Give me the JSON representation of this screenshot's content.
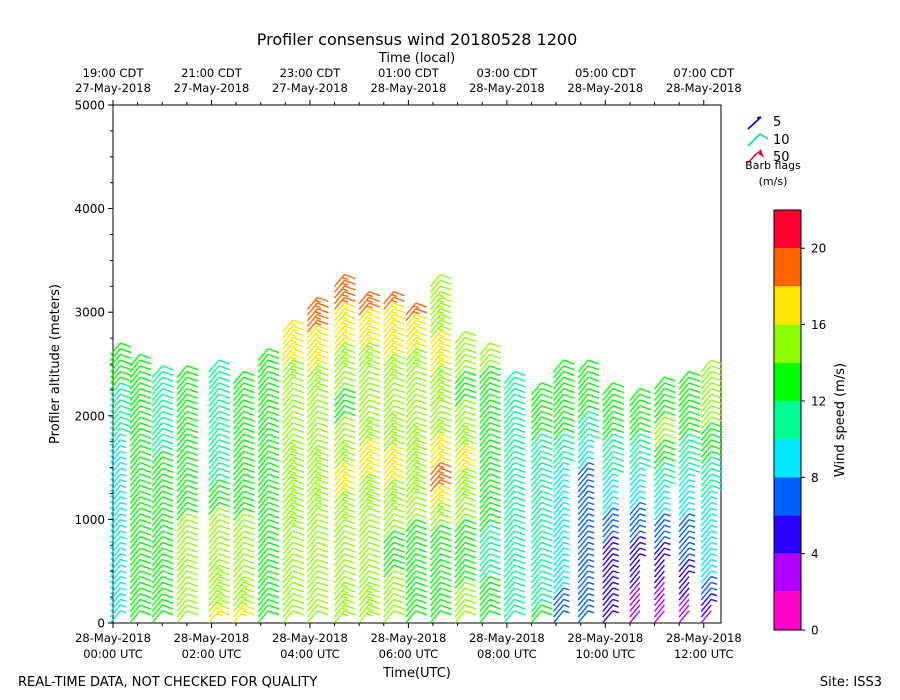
{
  "chart_data": {
    "type": "wind-barb-profile",
    "title": "Profiler consensus wind 20180528 1200",
    "xlabel": "Time(UTC)",
    "xlabel_top": "Time (local)",
    "ylabel": "Profiler altitude (meters)",
    "ylim": [
      0,
      5000
    ],
    "y_ticks": [
      0,
      1000,
      2000,
      3000,
      4000,
      5000
    ],
    "x_ticks_utc": [
      {
        "hour": 0,
        "date": "28-May-2018",
        "time": "00:00 UTC"
      },
      {
        "hour": 2,
        "date": "28-May-2018",
        "time": "02:00 UTC"
      },
      {
        "hour": 4,
        "date": "28-May-2018",
        "time": "04:00 UTC"
      },
      {
        "hour": 6,
        "date": "28-May-2018",
        "time": "06:00 UTC"
      },
      {
        "hour": 8,
        "date": "28-May-2018",
        "time": "08:00 UTC"
      },
      {
        "hour": 10,
        "date": "28-May-2018",
        "time": "10:00 UTC"
      },
      {
        "hour": 12,
        "date": "28-May-2018",
        "time": "12:00 UTC"
      }
    ],
    "x_ticks_local": [
      {
        "hour": 0,
        "time": "19:00 CDT",
        "date": "27-May-2018"
      },
      {
        "hour": 2,
        "time": "21:00 CDT",
        "date": "27-May-2018"
      },
      {
        "hour": 4,
        "time": "23:00 CDT",
        "date": "27-May-2018"
      },
      {
        "hour": 6,
        "time": "01:00 CDT",
        "date": "28-May-2018"
      },
      {
        "hour": 8,
        "time": "03:00 CDT",
        "date": "28-May-2018"
      },
      {
        "hour": 10,
        "time": "05:00 CDT",
        "date": "28-May-2018"
      },
      {
        "hour": 12,
        "time": "07:00 CDT",
        "date": "28-May-2018"
      }
    ],
    "xlim_hours": [
      0,
      12.35
    ],
    "barb_legend": {
      "entries": [
        {
          "value": "5",
          "color": "#0000d0"
        },
        {
          "value": "10",
          "color": "#00e090"
        },
        {
          "value": "50",
          "color": "#ff0030"
        }
      ],
      "title": "Barb flags",
      "units": "(m/s)"
    },
    "colorbar": {
      "label": "Wind speed (m/s)",
      "range": [
        0,
        22
      ],
      "ticks": [
        0,
        4,
        8,
        12,
        16,
        20
      ],
      "bins": [
        {
          "from": 0,
          "to": 2,
          "color": "#ff00c8"
        },
        {
          "from": 2,
          "to": 4,
          "color": "#b400ff"
        },
        {
          "from": 4,
          "to": 6,
          "color": "#2a00ff"
        },
        {
          "from": 6,
          "to": 8,
          "color": "#0060ff"
        },
        {
          "from": 8,
          "to": 10,
          "color": "#00e8ff"
        },
        {
          "from": 10,
          "to": 12,
          "color": "#00ff90"
        },
        {
          "from": 12,
          "to": 14,
          "color": "#00ff00"
        },
        {
          "from": 14,
          "to": 16,
          "color": "#8cff00"
        },
        {
          "from": 16,
          "to": 18,
          "color": "#ffe600"
        },
        {
          "from": 18,
          "to": 20,
          "color": "#ff6400"
        },
        {
          "from": 20,
          "to": 22,
          "color": "#ff0030"
        }
      ]
    },
    "columns": [
      {
        "hour": 0.05,
        "top": 2650,
        "profile": [
          [
            0,
            9
          ],
          [
            800,
            9
          ],
          [
            1500,
            8.5
          ],
          [
            2000,
            11
          ],
          [
            2600,
            13
          ]
        ]
      },
      {
        "hour": 0.45,
        "top": 2550,
        "profile": [
          [
            0,
            12
          ],
          [
            800,
            12.5
          ],
          [
            1500,
            12
          ],
          [
            2000,
            13
          ],
          [
            2500,
            13
          ]
        ]
      },
      {
        "hour": 0.9,
        "top": 2450,
        "profile": [
          [
            0,
            12
          ],
          [
            800,
            12.5
          ],
          [
            1400,
            13
          ],
          [
            2000,
            10.5
          ],
          [
            2450,
            12
          ]
        ]
      },
      {
        "hour": 1.4,
        "top": 2450,
        "profile": [
          [
            0,
            15
          ],
          [
            800,
            14.5
          ],
          [
            1400,
            13
          ],
          [
            2000,
            12
          ],
          [
            2450,
            13
          ]
        ]
      },
      {
        "hour": 2.05,
        "top": 2500,
        "profile": [
          [
            0,
            16.5
          ],
          [
            500,
            15
          ],
          [
            1000,
            14.5
          ],
          [
            1500,
            11
          ],
          [
            2100,
            10
          ],
          [
            2500,
            12
          ]
        ]
      },
      {
        "hour": 2.55,
        "top": 2400,
        "profile": [
          [
            0,
            16.5
          ],
          [
            400,
            15
          ],
          [
            1000,
            14
          ],
          [
            1600,
            13
          ],
          [
            2400,
            13
          ]
        ]
      },
      {
        "hour": 3.05,
        "top": 2600,
        "profile": [
          [
            0,
            13.5
          ],
          [
            800,
            13
          ],
          [
            1600,
            13
          ],
          [
            2600,
            13
          ]
        ]
      },
      {
        "hour": 3.55,
        "top": 2900,
        "profile": [
          [
            0,
            14
          ],
          [
            900,
            15
          ],
          [
            1500,
            15.5
          ],
          [
            2200,
            14
          ],
          [
            2700,
            17
          ],
          [
            2900,
            17
          ]
        ]
      },
      {
        "hour": 4.05,
        "top": 3100,
        "profile": [
          [
            0,
            15
          ],
          [
            800,
            14
          ],
          [
            1400,
            16
          ],
          [
            2000,
            14
          ],
          [
            2700,
            17
          ],
          [
            3100,
            20
          ]
        ]
      },
      {
        "hour": 4.6,
        "top": 3350,
        "profile": [
          [
            0,
            16
          ],
          [
            700,
            14
          ],
          [
            1400,
            16.5
          ],
          [
            2100,
            13.5
          ],
          [
            2800,
            16.5
          ],
          [
            3350,
            20
          ]
        ]
      },
      {
        "hour": 5.1,
        "top": 3150,
        "profile": [
          [
            0,
            16
          ],
          [
            700,
            14
          ],
          [
            1600,
            16.5
          ],
          [
            2200,
            14
          ],
          [
            2900,
            17
          ],
          [
            3150,
            19
          ]
        ]
      },
      {
        "hour": 5.6,
        "top": 3150,
        "profile": [
          [
            0,
            15
          ],
          [
            700,
            13.5
          ],
          [
            1500,
            16.5
          ],
          [
            2200,
            14.5
          ],
          [
            2800,
            17
          ],
          [
            3150,
            18.5
          ]
        ]
      },
      {
        "hour": 6.05,
        "top": 3050,
        "profile": [
          [
            0,
            14
          ],
          [
            700,
            13
          ],
          [
            1500,
            16
          ],
          [
            2300,
            14
          ],
          [
            2800,
            17
          ],
          [
            3050,
            18.5
          ]
        ]
      },
      {
        "hour": 6.55,
        "top": 3350,
        "profile": [
          [
            0,
            13.5
          ],
          [
            800,
            12.5
          ],
          [
            1400,
            19
          ],
          [
            2000,
            14.5
          ],
          [
            2600,
            16.5
          ],
          [
            3350,
            14.5
          ]
        ]
      },
      {
        "hour": 7.05,
        "top": 2800,
        "profile": [
          [
            0,
            15
          ],
          [
            700,
            13
          ],
          [
            1600,
            16.5
          ],
          [
            2200,
            13.5
          ],
          [
            2800,
            15
          ]
        ]
      },
      {
        "hour": 7.55,
        "top": 2650,
        "profile": [
          [
            0,
            13
          ],
          [
            600,
            11.5
          ],
          [
            1200,
            12.5
          ],
          [
            1700,
            12
          ],
          [
            2300,
            13
          ],
          [
            2650,
            15
          ]
        ]
      },
      {
        "hour": 8.05,
        "top": 2400,
        "profile": [
          [
            0,
            12
          ],
          [
            600,
            11
          ],
          [
            1200,
            11
          ],
          [
            2000,
            12
          ],
          [
            2400,
            10
          ]
        ]
      },
      {
        "hour": 8.6,
        "top": 2300,
        "profile": [
          [
            0,
            12.5
          ],
          [
            600,
            10
          ],
          [
            1200,
            10
          ],
          [
            1800,
            12
          ],
          [
            2300,
            13
          ]
        ]
      },
      {
        "hour": 9.05,
        "top": 2500,
        "profile": [
          [
            0,
            7
          ],
          [
            600,
            9
          ],
          [
            1200,
            8
          ],
          [
            1800,
            12
          ],
          [
            2500,
            13
          ]
        ]
      },
      {
        "hour": 9.55,
        "top": 2500,
        "profile": [
          [
            0,
            6
          ],
          [
            700,
            8
          ],
          [
            1400,
            7
          ],
          [
            2000,
            12
          ],
          [
            2500,
            13
          ]
        ]
      },
      {
        "hour": 10.05,
        "top": 2300,
        "profile": [
          [
            100,
            5
          ],
          [
            800,
            6
          ],
          [
            1400,
            10
          ],
          [
            2000,
            13
          ],
          [
            2300,
            13
          ]
        ]
      },
      {
        "hour": 10.6,
        "top": 2250,
        "profile": [
          [
            100,
            3
          ],
          [
            700,
            5.5
          ],
          [
            1300,
            9
          ],
          [
            1900,
            12.5
          ],
          [
            2250,
            13
          ]
        ]
      },
      {
        "hour": 11.1,
        "top": 2350,
        "profile": [
          [
            100,
            3
          ],
          [
            600,
            5
          ],
          [
            1200,
            9
          ],
          [
            1800,
            14.5
          ],
          [
            2350,
            13
          ]
        ]
      },
      {
        "hour": 11.6,
        "top": 2400,
        "profile": [
          [
            50,
            3
          ],
          [
            600,
            6
          ],
          [
            1200,
            9
          ],
          [
            1800,
            12
          ],
          [
            2400,
            13
          ]
        ]
      },
      {
        "hour": 12.05,
        "top": 2500,
        "profile": [
          [
            0,
            3
          ],
          [
            500,
            9
          ],
          [
            1100,
            9
          ],
          [
            1700,
            13
          ],
          [
            2100,
            15
          ],
          [
            2500,
            14
          ]
        ]
      }
    ]
  },
  "footer": {
    "left": "REAL-TIME DATA, NOT CHECKED FOR QUALITY",
    "right": "Site: ISS3"
  }
}
